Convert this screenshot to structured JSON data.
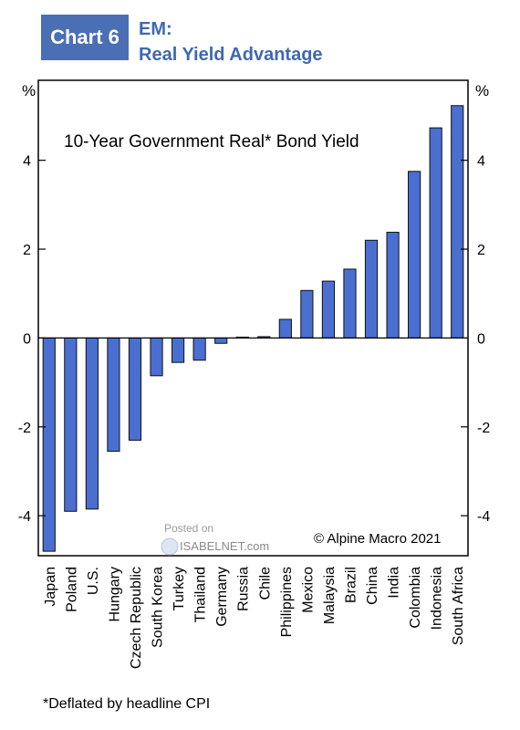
{
  "badge": {
    "label": "Chart 6",
    "color": "#4a6fb5"
  },
  "header": {
    "line1": "EM:",
    "line2": "Real Yield Advantage",
    "color": "#3f68b0"
  },
  "footnote": "*Deflated by headline CPI",
  "chart_data": {
    "type": "bar",
    "title": "10-Year Government Real* Bond Yield",
    "unit_left": "%",
    "unit_right": "%",
    "categories": [
      "Japan",
      "Poland",
      "U.S.",
      "Hungary",
      "Czech Republic",
      "South Korea",
      "Turkey",
      "Thailand",
      "Germany",
      "Russia",
      "Chile",
      "Philippines",
      "Mexico",
      "Malaysia",
      "Brazil",
      "China",
      "India",
      "Colombia",
      "Indonesia",
      "South Africa"
    ],
    "values": [
      -4.8,
      -3.9,
      -3.85,
      -2.55,
      -2.3,
      -0.85,
      -0.55,
      -0.5,
      -0.12,
      0.02,
      0.03,
      0.42,
      1.07,
      1.28,
      1.55,
      2.2,
      2.38,
      3.75,
      4.73,
      5.23
    ],
    "ylim": [
      -4.9,
      5.8
    ],
    "yticks": [
      -4,
      -2,
      0,
      2,
      4
    ],
    "bar_color": "#4a6fd0",
    "source": "© Alpine Macro 2021",
    "watermark": {
      "line1": "Posted on",
      "line2": "ISABELNET.com"
    }
  }
}
